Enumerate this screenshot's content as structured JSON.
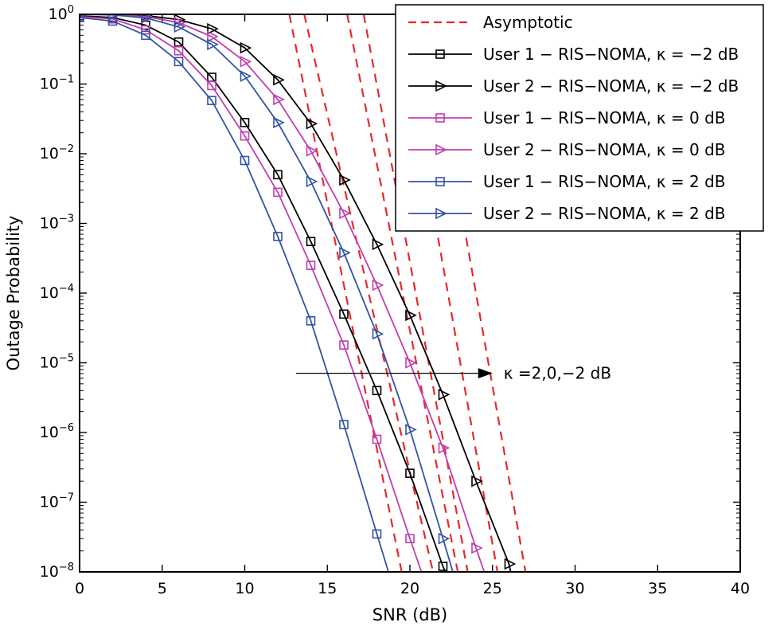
{
  "chart_data": {
    "type": "line",
    "title": "",
    "xlabel": "SNR (dB)",
    "ylabel": "Outage Probability",
    "xlim": [
      0,
      40
    ],
    "ylim_exp": [
      -8,
      0
    ],
    "grid": false,
    "x_ticks": [
      0,
      5,
      10,
      15,
      20,
      25,
      30,
      35,
      40
    ],
    "x_tick_labels": [
      "0",
      "5",
      "10",
      "15",
      "20",
      "25",
      "30",
      "35",
      "40"
    ],
    "y_tick_exponents": [
      0,
      -1,
      -2,
      -3,
      -4,
      -5,
      -6,
      -7,
      -8
    ],
    "y_tick_labels": [
      "10^0",
      "10^-1",
      "10^-2",
      "10^-3",
      "10^-4",
      "10^-5",
      "10^-6",
      "10^-7",
      "10^-8"
    ],
    "colors": {
      "black": "#000000",
      "magenta": "#bf3eae",
      "blue": "#3353a4",
      "red": "#e8282a"
    },
    "series": [
      {
        "name": "User 1 − RIS−NOMA, κ = −2 dB",
        "color_key": "black",
        "marker": "square",
        "x": [
          0,
          2,
          4,
          6,
          8,
          10,
          12,
          14,
          16,
          18,
          20,
          22
        ],
        "y": [
          0.95,
          0.9,
          0.7,
          0.4,
          0.125,
          0.028,
          0.005,
          0.00055,
          5e-05,
          4e-06,
          2.6e-07,
          1.2e-08
        ],
        "exit_x": 22.15
      },
      {
        "name": "User 2 − RIS−NOMA, κ = −2 dB",
        "color_key": "black",
        "marker": "triangle",
        "x": [
          0,
          2,
          4,
          6,
          8,
          10,
          12,
          14,
          16,
          18,
          20,
          22,
          24,
          26
        ],
        "y": [
          1.0,
          0.995,
          0.96,
          0.84,
          0.62,
          0.33,
          0.115,
          0.027,
          0.0042,
          0.0005,
          4.8e-05,
          3.5e-06,
          2e-07,
          1.3e-08
        ],
        "exit_x": 26.1
      },
      {
        "name": "User 1 − RIS−NOMA, κ = 0 dB",
        "color_key": "magenta",
        "marker": "square",
        "x": [
          0,
          2,
          4,
          6,
          8,
          10,
          12,
          14,
          16,
          18,
          20
        ],
        "y": [
          0.93,
          0.86,
          0.6,
          0.3,
          0.095,
          0.018,
          0.0028,
          0.00025,
          1.8e-05,
          8e-07,
          3e-08
        ],
        "exit_x": 20.7
      },
      {
        "name": "User 2 − RIS−NOMA, κ = 0 dB",
        "color_key": "magenta",
        "marker": "triangle",
        "x": [
          0,
          2,
          4,
          6,
          8,
          10,
          12,
          14,
          16,
          18,
          20,
          22,
          24
        ],
        "y": [
          1.0,
          0.99,
          0.93,
          0.76,
          0.48,
          0.21,
          0.06,
          0.011,
          0.0014,
          0.00013,
          1e-05,
          6e-07,
          2.2e-08
        ],
        "exit_x": 24.5
      },
      {
        "name": "User 1 − RIS−NOMA, κ = 2 dB",
        "color_key": "blue",
        "marker": "square",
        "x": [
          0,
          2,
          4,
          6,
          8,
          10,
          12,
          14,
          16,
          18
        ],
        "y": [
          0.9,
          0.8,
          0.5,
          0.21,
          0.058,
          0.008,
          0.00065,
          4e-05,
          1.3e-06,
          3.5e-08
        ],
        "exit_x": 18.7
      },
      {
        "name": "User 2 − RIS−NOMA, κ = 2 dB",
        "color_key": "blue",
        "marker": "triangle",
        "x": [
          0,
          2,
          4,
          6,
          8,
          10,
          12,
          14,
          16,
          18,
          20,
          22
        ],
        "y": [
          1.0,
          0.98,
          0.89,
          0.66,
          0.37,
          0.13,
          0.028,
          0.004,
          0.00038,
          2.6e-05,
          1.1e-06,
          3e-08
        ],
        "exit_x": 22.6
      }
    ],
    "asymptotes": {
      "label": "Asymptotic",
      "color_key": "red",
      "lines": [
        {
          "x_top": 12.7,
          "x_bottom": 19.5
        },
        {
          "x_top": 13.6,
          "x_bottom": 21.4
        },
        {
          "x_top": 16.2,
          "x_bottom": 22.9
        },
        {
          "x_top": 17.2,
          "x_bottom": 23.5
        },
        {
          "x_top": 19.3,
          "x_bottom": 25.3
        },
        {
          "x_top": 21.0,
          "x_bottom": 27.0
        }
      ]
    },
    "annotation": {
      "text": "κ =2,0,−2 dB",
      "x_start": 13.1,
      "x_end": 25.0,
      "y_exp": -5.15
    },
    "legend": {
      "position": "top-right",
      "entries": [
        {
          "label": "Asymptotic",
          "style": "dashed",
          "color_key": "red",
          "marker": "none"
        },
        {
          "label": "User 1 − RIS−NOMA, κ = −2 dB",
          "style": "solid",
          "color_key": "black",
          "marker": "square"
        },
        {
          "label": "User 2 − RIS−NOMA, κ = −2 dB",
          "style": "solid",
          "color_key": "black",
          "marker": "triangle"
        },
        {
          "label": "User 1 − RIS−NOMA, κ = 0 dB",
          "style": "solid",
          "color_key": "magenta",
          "marker": "square"
        },
        {
          "label": "User 2 − RIS−NOMA, κ = 0 dB",
          "style": "solid",
          "color_key": "magenta",
          "marker": "triangle"
        },
        {
          "label": "User 1 − RIS−NOMA, κ = 2 dB",
          "style": "solid",
          "color_key": "blue",
          "marker": "square"
        },
        {
          "label": "User 2 − RIS−NOMA, κ = 2 dB",
          "style": "solid",
          "color_key": "blue",
          "marker": "triangle"
        }
      ]
    }
  }
}
